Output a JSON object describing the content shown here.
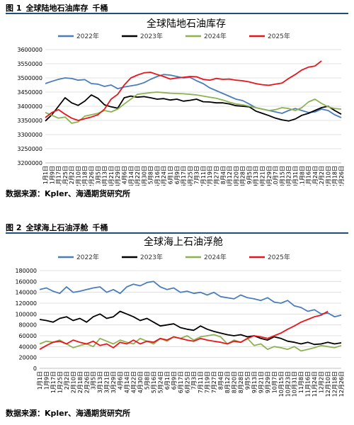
{
  "figures": [
    {
      "caption_number": "图 1",
      "caption_title": "全球陆地石油库存",
      "caption_unit": "千桶",
      "source": "数据来源：Kpler、海通期货研究所"
    },
    {
      "caption_number": "图 2",
      "caption_title": "全球海上石油浮舱",
      "caption_unit": "千桶",
      "source": "数据来源：Kpler、海通期货研究所"
    }
  ],
  "colors": {
    "2022": "#4a7ebb",
    "2023": "#000000",
    "2024": "#8db350",
    "2025": "#e8161c",
    "rule": "#1f4e79"
  },
  "chart_data": [
    {
      "type": "line",
      "title": "全球陆地石油库存",
      "ylim": [
        3200000,
        3600000
      ],
      "yticks": [
        3200000,
        3250000,
        3300000,
        3350000,
        3400000,
        3450000,
        3500000,
        3550000,
        3600000
      ],
      "ytick_labels": [
        "3200000",
        "3250000",
        "3300000",
        "3350000",
        "3400000",
        "3450000",
        "3500000",
        "3550000",
        "3600000"
      ],
      "x_tick_labels": [
        "1月1日",
        "1月9日",
        "1月17日",
        "1月25日",
        "2月2日",
        "2月10日",
        "2月18日",
        "2月26日",
        "3月5日",
        "3月13日",
        "3月21日",
        "3月29日",
        "4月6日",
        "4月14日",
        "4月22日",
        "4月30日",
        "5月8日",
        "5月16日",
        "5月24日",
        "6月1日",
        "6月9日",
        "6月17日",
        "6月25日",
        "7月3日",
        "7月11日",
        "7月19日",
        "7月27日",
        "8月4日",
        "8月12日",
        "8月20日",
        "8月28日",
        "9月5日",
        "9月13日",
        "9月21日",
        "9月29日",
        "10月7日",
        "10月15日",
        "10月23日",
        "10月31日",
        "11月8日",
        "11月16日",
        "11月24日",
        "12月2日",
        "12月10日",
        "12月18日",
        "12月26日"
      ],
      "grid": true,
      "legend": "top",
      "series": [
        {
          "name": "2022年",
          "color": "#4a7ebb",
          "values": [
            3480000,
            3488000,
            3495000,
            3500000,
            3498000,
            3492000,
            3494000,
            3480000,
            3478000,
            3470000,
            3475000,
            3462000,
            3468000,
            3472000,
            3476000,
            3483000,
            3495000,
            3505000,
            3512000,
            3510000,
            3505000,
            3500000,
            3502000,
            3490000,
            3480000,
            3465000,
            3455000,
            3445000,
            3435000,
            3425000,
            3420000,
            3408000,
            3395000,
            3390000,
            3385000,
            3380000,
            3375000,
            3385000,
            3392000,
            3385000,
            3378000,
            3380000,
            3390000,
            3385000,
            3370000,
            3360000
          ]
        },
        {
          "name": "2023年",
          "color": "#000000",
          "values": [
            3348000,
            3370000,
            3400000,
            3430000,
            3412000,
            3403000,
            3418000,
            3440000,
            3428000,
            3405000,
            3398000,
            3393000,
            3430000,
            3436000,
            3432000,
            3434000,
            3430000,
            3425000,
            3427000,
            3422000,
            3425000,
            3418000,
            3421000,
            3425000,
            3416000,
            3415000,
            3412000,
            3412000,
            3408000,
            3402000,
            3400000,
            3398000,
            3383000,
            3375000,
            3367000,
            3358000,
            3352000,
            3348000,
            3355000,
            3368000,
            3375000,
            3385000,
            3395000,
            3400000,
            3385000,
            3372000
          ]
        },
        {
          "name": "2024年",
          "color": "#8db350",
          "values": [
            3378000,
            3368000,
            3358000,
            3362000,
            3340000,
            3345000,
            3365000,
            3370000,
            3375000,
            3385000,
            3380000,
            3390000,
            3408000,
            3425000,
            3442000,
            3445000,
            3448000,
            3450000,
            3448000,
            3446000,
            3445000,
            3444000,
            3442000,
            3440000,
            3436000,
            3432000,
            3428000,
            3422000,
            3414000,
            3408000,
            3405000,
            3400000,
            3395000,
            3390000,
            3385000,
            3388000,
            3395000,
            3392000,
            3385000,
            3395000,
            3415000,
            3425000,
            3410000,
            3398000,
            3392000,
            3390000
          ]
        },
        {
          "name": "2025年",
          "color": "#e8161c",
          "values": [
            3360000,
            3378000,
            3388000,
            3372000,
            3358000,
            3350000,
            3356000,
            3362000,
            3370000,
            3390000,
            3425000,
            3442000,
            3475000,
            3500000,
            3510000,
            3518000,
            3520000,
            3512000,
            3505000,
            3496000,
            3500000,
            3502000,
            3505000,
            3504000,
            3495000,
            3492000,
            3498000,
            3495000,
            3496000,
            3492000,
            3490000,
            3486000,
            3480000,
            3476000,
            3474000,
            3478000,
            3482000,
            3498000,
            3512000,
            3528000,
            3538000,
            3542000,
            3560000
          ]
        }
      ]
    },
    {
      "type": "line",
      "title": "全球海上石油浮舱",
      "ylim": [
        0,
        180000
      ],
      "yticks": [
        0,
        20000,
        40000,
        60000,
        80000,
        100000,
        120000,
        140000,
        160000,
        180000
      ],
      "ytick_labels": [
        "0",
        "20000",
        "40000",
        "60000",
        "80000",
        "100000",
        "120000",
        "140000",
        "160000",
        "180000"
      ],
      "x_tick_labels": [
        "1月1日",
        "1月9日",
        "1月17日",
        "1月25日",
        "2月2日",
        "2月10日",
        "2月18日",
        "2月26日",
        "3月5日",
        "3月13日",
        "3月21日",
        "3月29日",
        "4月6日",
        "4月14日",
        "4月22日",
        "4月30日",
        "5月8日",
        "5月16日",
        "5月24日",
        "6月1日",
        "6月9日",
        "6月17日",
        "6月25日",
        "7月3日",
        "7月11日",
        "7月19日",
        "7月27日",
        "8月4日",
        "8月12日",
        "8月20日",
        "8月28日",
        "9月5日",
        "9月13日",
        "9月21日",
        "9月29日",
        "10月7日",
        "10月15日",
        "10月23日",
        "10月31日",
        "11月8日",
        "11月16日",
        "11月24日",
        "12月2日",
        "12月10日",
        "12月18日",
        "12月26日"
      ],
      "grid": true,
      "legend": "top",
      "series": [
        {
          "name": "2022年",
          "color": "#4a7ebb",
          "values": [
            145000,
            148000,
            142000,
            138000,
            150000,
            140000,
            142000,
            145000,
            148000,
            150000,
            140000,
            145000,
            138000,
            150000,
            155000,
            152000,
            158000,
            160000,
            150000,
            145000,
            148000,
            140000,
            142000,
            138000,
            140000,
            135000,
            140000,
            132000,
            130000,
            128000,
            135000,
            130000,
            128000,
            125000,
            130000,
            122000,
            120000,
            125000,
            115000,
            112000,
            105000,
            108000,
            100000,
            102000,
            95000,
            98000
          ]
        },
        {
          "name": "2023年",
          "color": "#000000",
          "values": [
            90000,
            88000,
            85000,
            92000,
            95000,
            88000,
            92000,
            85000,
            95000,
            100000,
            92000,
            95000,
            105000,
            100000,
            95000,
            88000,
            92000,
            85000,
            78000,
            80000,
            82000,
            75000,
            72000,
            70000,
            78000,
            72000,
            68000,
            65000,
            62000,
            60000,
            62000,
            58000,
            60000,
            55000,
            52000,
            58000,
            55000,
            50000,
            48000,
            45000,
            48000,
            44000,
            45000,
            48000,
            45000,
            47000
          ]
        },
        {
          "name": "2024年",
          "color": "#8db350",
          "values": [
            45000,
            50000,
            48000,
            52000,
            45000,
            38000,
            42000,
            45000,
            40000,
            55000,
            50000,
            45000,
            52000,
            48000,
            45000,
            55000,
            50000,
            45000,
            55000,
            50000,
            58000,
            55000,
            60000,
            52000,
            58000,
            60000,
            62000,
            58000,
            45000,
            52000,
            48000,
            55000,
            42000,
            45000,
            35000,
            40000,
            38000,
            35000,
            40000,
            32000,
            35000,
            38000,
            42000,
            40000,
            38000,
            42000
          ]
        },
        {
          "name": "2025年",
          "color": "#e8161c",
          "values": [
            35000,
            42000,
            48000,
            50000,
            45000,
            52000,
            48000,
            45000,
            50000,
            42000,
            45000,
            38000,
            48000,
            45000,
            52000,
            45000,
            50000,
            48000,
            55000,
            52000,
            58000,
            55000,
            52000,
            50000,
            55000,
            52000,
            50000,
            48000,
            45000,
            50000,
            48000,
            55000,
            60000,
            58000,
            55000,
            60000,
            65000,
            72000,
            78000,
            85000,
            90000,
            95000,
            98000,
            105000
          ]
        }
      ]
    }
  ]
}
